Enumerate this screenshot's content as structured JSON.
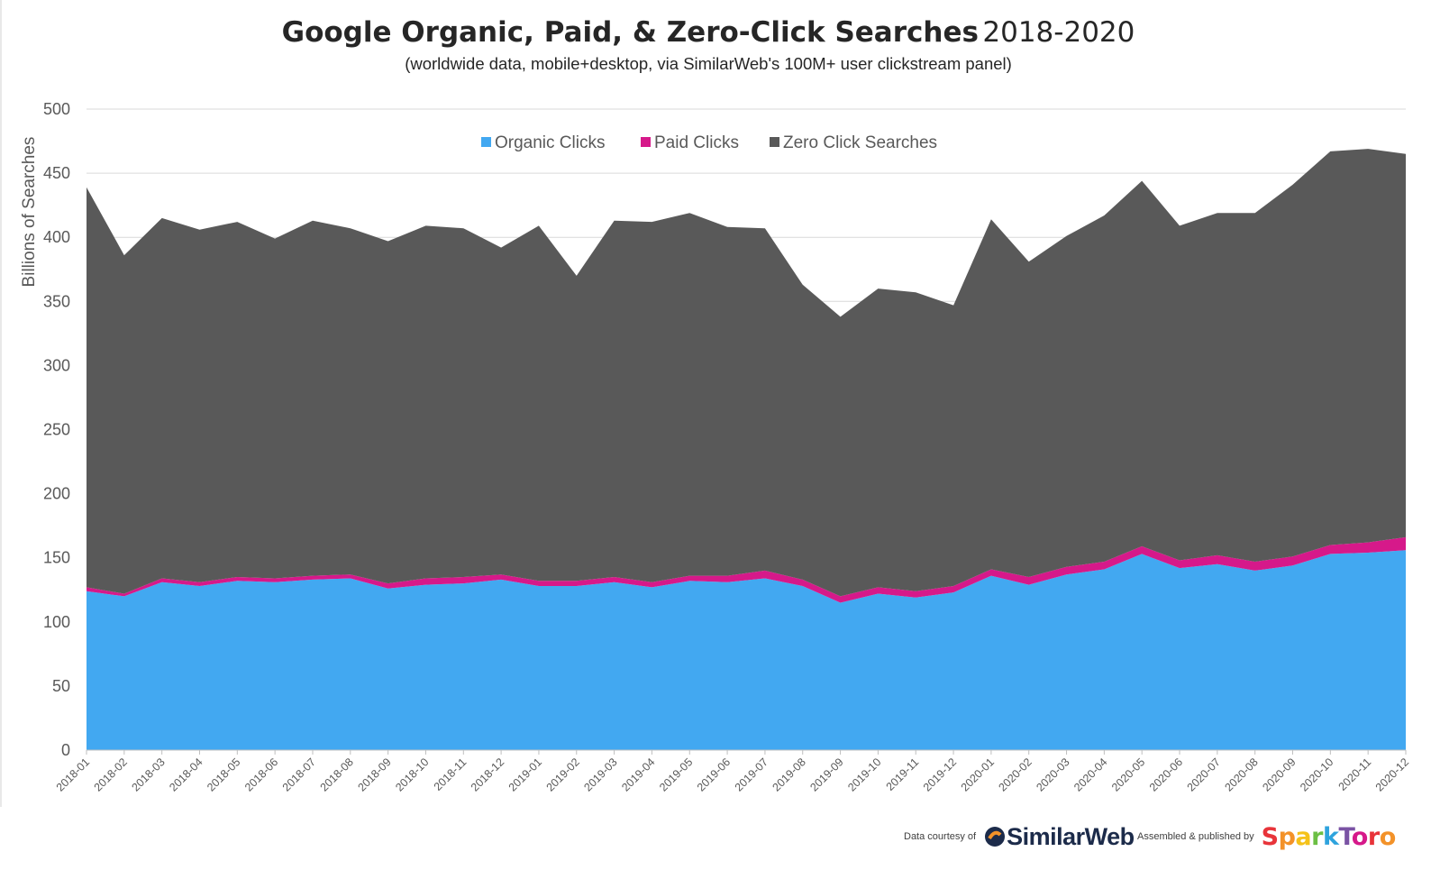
{
  "title": {
    "main": "Google Organic, Paid, & Zero-Click Searches",
    "years": "2018-2020",
    "subtitle": "(worldwide data, mobile+desktop, via SimilarWeb's 100M+ user clickstream panel)"
  },
  "footer": {
    "data_courtesy": "Data courtesy of",
    "similarweb": "SimilarWeb",
    "assembled": "Assembled & published by",
    "sparktoro": "SparkToro"
  },
  "colors": {
    "organic": "#42a8f1",
    "paid": "#d6198a",
    "zero": "#595959",
    "grid": "#d9d9d9",
    "axis_text": "#595959",
    "sparktoro_letters": [
      "#e8343a",
      "#f39229",
      "#f5c219",
      "#6cbf44",
      "#2ea3dd",
      "#7a53a4",
      "#d6198a",
      "#e8343a",
      "#f39229"
    ]
  },
  "chart_data": {
    "type": "area",
    "stacked": true,
    "ylabel": "Billions of Searches",
    "xlabel": "",
    "ylim": [
      0,
      500
    ],
    "yticks": [
      0,
      50,
      100,
      150,
      200,
      250,
      300,
      350,
      400,
      450,
      500
    ],
    "grid": true,
    "legend": "top-center",
    "x": [
      "2018-01",
      "2018-02",
      "2018-03",
      "2018-04",
      "2018-05",
      "2018-06",
      "2018-07",
      "2018-08",
      "2018-09",
      "2018-10",
      "2018-11",
      "2018-12",
      "2019-01",
      "2019-02",
      "2019-03",
      "2019-04",
      "2019-05",
      "2019-06",
      "2019-07",
      "2019-08",
      "2019-09",
      "2019-10",
      "2019-11",
      "2019-12",
      "2020-01",
      "2020-02",
      "2020-03",
      "2020-04",
      "2020-05",
      "2020-06",
      "2020-07",
      "2020-08",
      "2020-09",
      "2020-10",
      "2020-11",
      "2020-12"
    ],
    "series": [
      {
        "name": "Organic Clicks",
        "color": "#42a8f1",
        "values": [
          124,
          120,
          131,
          128,
          132,
          131,
          133,
          134,
          126,
          129,
          130,
          133,
          128,
          128,
          131,
          127,
          132,
          131,
          134,
          128,
          115,
          122,
          119,
          123,
          136,
          129,
          137,
          141,
          153,
          142,
          145,
          140,
          144,
          153,
          154,
          156
        ]
      },
      {
        "name": "Paid Clicks",
        "color": "#d6198a",
        "values": [
          3,
          2,
          3,
          3,
          3,
          3,
          3,
          3,
          4,
          5,
          5,
          4,
          4,
          4,
          4,
          4,
          4,
          5,
          6,
          5,
          5,
          5,
          5,
          5,
          5,
          6,
          6,
          6,
          6,
          6,
          7,
          7,
          7,
          7,
          8,
          10
        ]
      },
      {
        "name": "Zero Click Searches",
        "color": "#595959",
        "values": [
          312,
          264,
          281,
          275,
          277,
          265,
          277,
          270,
          267,
          275,
          272,
          255,
          277,
          238,
          278,
          281,
          283,
          272,
          267,
          230,
          218,
          233,
          233,
          219,
          273,
          246,
          258,
          270,
          285,
          261,
          267,
          272,
          290,
          307,
          307,
          299
        ]
      }
    ]
  }
}
